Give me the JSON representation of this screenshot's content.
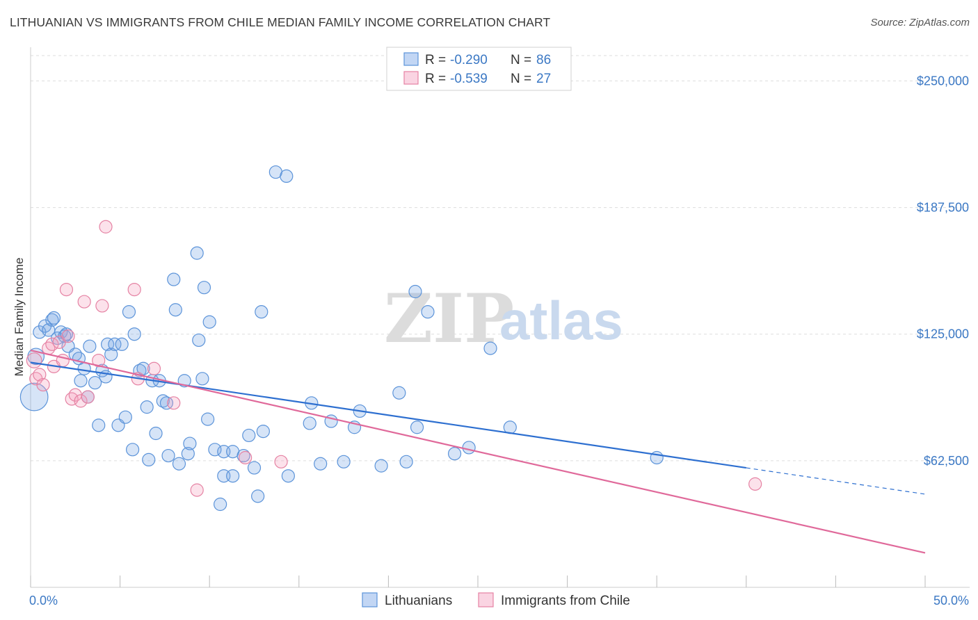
{
  "title": "LITHUANIAN VS IMMIGRANTS FROM CHILE MEDIAN FAMILY INCOME CORRELATION CHART",
  "source": "Source: ZipAtlas.com",
  "watermark": {
    "zip": "ZIP",
    "atlas": "atlas"
  },
  "colors": {
    "blue": "#5b93d9",
    "blue_fill": "rgba(120,165,230,0.30)",
    "blue_line": "#2d6fd0",
    "pink": "#e582a3",
    "pink_fill": "rgba(245,160,190,0.30)",
    "pink_line": "#e0699a",
    "axis_text": "#3b78c4",
    "grid": "#dddddd"
  },
  "legend": {
    "rows": [
      {
        "r_label": "R =",
        "r_value": "-0.290",
        "n_label": "N =",
        "n_value": "86",
        "series": "blue"
      },
      {
        "r_label": "R =",
        "r_value": "-0.539",
        "n_label": "N =",
        "n_value": "27",
        "series": "pink"
      }
    ]
  },
  "chart_data": {
    "type": "scatter",
    "title": "LITHUANIAN VS IMMIGRANTS FROM CHILE MEDIAN FAMILY INCOME CORRELATION CHART",
    "xlabel": "",
    "ylabel": "Median Family Income",
    "xlim": [
      0,
      50
    ],
    "ylim": [
      0,
      262500
    ],
    "x_tick_labels": [
      "0.0%",
      "50.0%"
    ],
    "y_ticks": [
      62500,
      125000,
      187500,
      250000
    ],
    "y_tick_labels": [
      "$62,500",
      "$125,000",
      "$187,500",
      "$250,000"
    ],
    "series": [
      {
        "name": "Lithuanians",
        "color": "blue",
        "points": [
          [
            0.2,
            94000,
            2.2
          ],
          [
            0.3,
            114000,
            1.3
          ],
          [
            0.5,
            126000,
            1.0
          ],
          [
            0.8,
            129000,
            1.0
          ],
          [
            1.0,
            127000,
            1.0
          ],
          [
            1.2,
            132000,
            1.0
          ],
          [
            1.3,
            133000,
            1.0
          ],
          [
            1.5,
            123000,
            1.0
          ],
          [
            1.7,
            126000,
            1.0
          ],
          [
            1.9,
            124000,
            1.0
          ],
          [
            2.0,
            125000,
            1.0
          ],
          [
            2.1,
            119000,
            1.0
          ],
          [
            2.5,
            115000,
            1.0
          ],
          [
            2.7,
            113000,
            1.0
          ],
          [
            2.8,
            102000,
            1.0
          ],
          [
            3.0,
            108000,
            1.0
          ],
          [
            3.2,
            94000,
            1.0
          ],
          [
            3.3,
            119000,
            1.0
          ],
          [
            3.6,
            101000,
            1.0
          ],
          [
            3.8,
            80000,
            1.0
          ],
          [
            4.0,
            107000,
            1.0
          ],
          [
            4.2,
            104000,
            1.0
          ],
          [
            4.3,
            120000,
            1.0
          ],
          [
            4.5,
            115000,
            1.0
          ],
          [
            4.7,
            120000,
            1.0
          ],
          [
            4.9,
            80000,
            1.0
          ],
          [
            5.1,
            120000,
            1.0
          ],
          [
            5.3,
            84000,
            1.0
          ],
          [
            5.5,
            136000,
            1.0
          ],
          [
            5.7,
            68000,
            1.0
          ],
          [
            5.8,
            125000,
            1.0
          ],
          [
            6.1,
            107000,
            1.0
          ],
          [
            6.3,
            108000,
            1.0
          ],
          [
            6.5,
            89000,
            1.0
          ],
          [
            6.6,
            63000,
            1.0
          ],
          [
            6.8,
            102000,
            1.0
          ],
          [
            7.0,
            76000,
            1.0
          ],
          [
            7.2,
            102000,
            1.0
          ],
          [
            7.4,
            92000,
            1.0
          ],
          [
            7.6,
            91000,
            1.0
          ],
          [
            7.7,
            65000,
            1.0
          ],
          [
            8.0,
            152000,
            1.0
          ],
          [
            8.1,
            137000,
            1.0
          ],
          [
            8.3,
            61000,
            1.0
          ],
          [
            8.6,
            102000,
            1.0
          ],
          [
            8.8,
            66000,
            1.0
          ],
          [
            8.9,
            71000,
            1.0
          ],
          [
            9.3,
            165000,
            1.0
          ],
          [
            9.4,
            122000,
            1.0
          ],
          [
            9.6,
            103000,
            1.0
          ],
          [
            9.7,
            148000,
            1.0
          ],
          [
            9.9,
            83000,
            1.0
          ],
          [
            10.0,
            131000,
            1.0
          ],
          [
            10.3,
            68000,
            1.0
          ],
          [
            10.6,
            41000,
            1.0
          ],
          [
            10.8,
            55000,
            1.0
          ],
          [
            10.8,
            67000,
            1.0
          ],
          [
            11.3,
            55000,
            1.0
          ],
          [
            11.3,
            67000,
            1.0
          ],
          [
            11.9,
            65000,
            1.0
          ],
          [
            12.2,
            75000,
            1.0
          ],
          [
            12.5,
            59000,
            1.0
          ],
          [
            12.7,
            45000,
            1.0
          ],
          [
            12.9,
            136000,
            1.0
          ],
          [
            13.0,
            77000,
            1.0
          ],
          [
            13.7,
            205000,
            1.0
          ],
          [
            14.3,
            203000,
            1.0
          ],
          [
            14.4,
            55000,
            1.0
          ],
          [
            15.6,
            81000,
            1.0
          ],
          [
            15.7,
            91000,
            1.0
          ],
          [
            16.2,
            61000,
            1.0
          ],
          [
            16.8,
            82000,
            1.0
          ],
          [
            17.5,
            62000,
            1.0
          ],
          [
            18.1,
            79000,
            1.0
          ],
          [
            18.4,
            87000,
            1.0
          ],
          [
            19.6,
            60000,
            1.0
          ],
          [
            20.6,
            96000,
            1.0
          ],
          [
            21.0,
            62000,
            1.0
          ],
          [
            21.5,
            146000,
            1.0
          ],
          [
            21.6,
            79000,
            1.0
          ],
          [
            22.2,
            136000,
            1.0
          ],
          [
            23.7,
            66000,
            1.0
          ],
          [
            24.5,
            69000,
            1.0
          ],
          [
            25.7,
            118000,
            1.0
          ],
          [
            26.8,
            79000,
            1.0
          ],
          [
            35.0,
            64000,
            1.0
          ]
        ],
        "trend": {
          "x0": 0,
          "y0": 111000,
          "x1": 40,
          "y1": 59000,
          "dash_to_x": 50,
          "dash_to_y": 46000
        }
      },
      {
        "name": "Immigrants from Chile",
        "color": "pink",
        "points": [
          [
            0.2,
            112000,
            1.2
          ],
          [
            0.3,
            103000,
            1.0
          ],
          [
            0.5,
            105000,
            1.0
          ],
          [
            0.7,
            100000,
            1.0
          ],
          [
            1.0,
            118000,
            1.0
          ],
          [
            1.2,
            120000,
            1.0
          ],
          [
            1.3,
            109000,
            1.0
          ],
          [
            1.6,
            121000,
            1.0
          ],
          [
            1.8,
            112000,
            1.0
          ],
          [
            2.0,
            147000,
            1.0
          ],
          [
            2.1,
            124000,
            1.0
          ],
          [
            2.3,
            93000,
            1.0
          ],
          [
            2.5,
            95000,
            1.0
          ],
          [
            2.8,
            92000,
            1.0
          ],
          [
            3.0,
            141000,
            1.0
          ],
          [
            3.2,
            94000,
            1.0
          ],
          [
            3.8,
            112000,
            1.0
          ],
          [
            4.0,
            139000,
            1.0
          ],
          [
            4.2,
            178000,
            1.0
          ],
          [
            5.8,
            147000,
            1.0
          ],
          [
            6.0,
            103000,
            1.0
          ],
          [
            6.9,
            108000,
            1.0
          ],
          [
            8.0,
            91000,
            1.0
          ],
          [
            9.3,
            48000,
            1.0
          ],
          [
            12.0,
            64000,
            1.0
          ],
          [
            14.0,
            62000,
            1.0
          ],
          [
            40.5,
            51000,
            1.0
          ]
        ],
        "trend": {
          "x0": 0,
          "y0": 117000,
          "x1": 50,
          "y1": 17000
        }
      }
    ],
    "bottom_legend": [
      "Lithuanians",
      "Immigrants from Chile"
    ]
  }
}
